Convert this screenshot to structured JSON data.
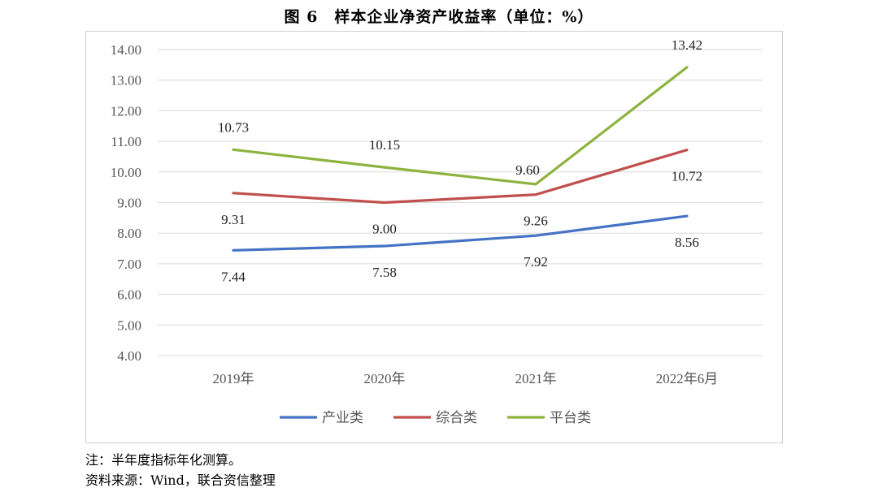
{
  "title": "图 6　样本企业净资产收益率（单位：%）",
  "note": "注：半年度指标年化测算。",
  "source": "资料来源：Wind，联合资信整理",
  "chart_data": {
    "type": "line",
    "categories": [
      "2019年",
      "2020年",
      "2021年",
      "2022年6月"
    ],
    "ylim": [
      4.0,
      14.0
    ],
    "yticks": [
      "4.00",
      "5.00",
      "6.00",
      "7.00",
      "8.00",
      "9.00",
      "10.00",
      "11.00",
      "12.00",
      "13.00",
      "14.00"
    ],
    "grid": true,
    "legend": "bottom",
    "series": [
      {
        "name": "产业类",
        "color": "#4472C4",
        "values": [
          7.44,
          7.58,
          7.92,
          8.56
        ],
        "labels": [
          "7.44",
          "7.58",
          "7.92",
          "8.56"
        ]
      },
      {
        "name": "综合类",
        "color": "#C0504D",
        "values": [
          9.31,
          9.0,
          9.26,
          10.72
        ],
        "labels": [
          "9.31",
          "9.00",
          "9.26",
          "10.72"
        ]
      },
      {
        "name": "平台类",
        "color": "#8DB33E",
        "values": [
          10.73,
          10.15,
          9.6,
          13.42
        ],
        "labels": [
          "10.73",
          "10.15",
          "9.60",
          "13.42"
        ]
      }
    ]
  }
}
